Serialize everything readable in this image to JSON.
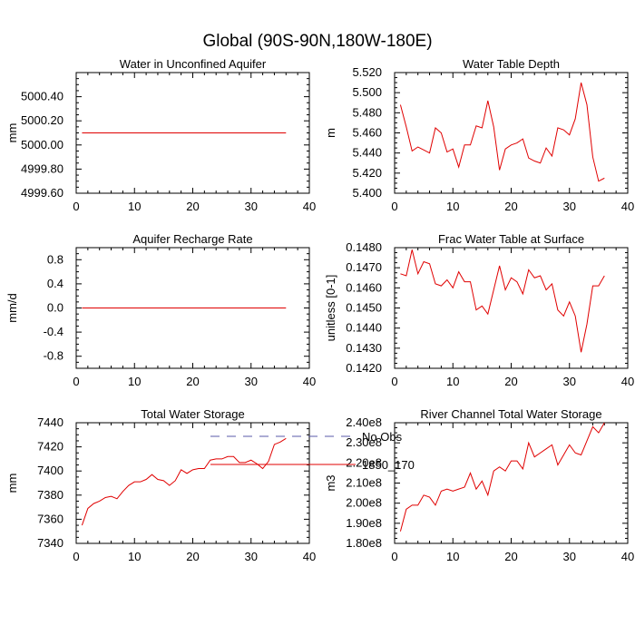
{
  "figure_title": "Global (90S-90N,180W-180E)",
  "legend": {
    "entries": [
      {
        "label": "No Obs",
        "color": "#5a5aa8",
        "style": "dashed"
      },
      {
        "label": "1850_170",
        "color": "#e00000",
        "style": "solid"
      }
    ]
  },
  "chart_data": [
    {
      "type": "line",
      "title": "Water in Unconfined Aquifer",
      "xlabel": "",
      "ylabel": "mm",
      "xlim": [
        0,
        40
      ],
      "ylim": [
        4999.6,
        5000.6
      ],
      "xticks": [
        0,
        10,
        20,
        30,
        40
      ],
      "xtick_labels": [
        "0",
        "10",
        "20",
        "30",
        "40"
      ],
      "yticks": [
        4999.6,
        4999.8,
        5000.0,
        5000.2,
        5000.4
      ],
      "ytick_labels": [
        "4999.60",
        "4999.80",
        "5000.00",
        "5000.20",
        "5000.40"
      ],
      "series": [
        {
          "color": "#e00000",
          "x": [
            1,
            36
          ],
          "values": [
            5000.1,
            5000.1
          ]
        }
      ]
    },
    {
      "type": "line",
      "title": "Water Table Depth",
      "xlabel": "",
      "ylabel": "m",
      "xlim": [
        0,
        40
      ],
      "ylim": [
        5.4,
        5.52
      ],
      "xticks": [
        0,
        10,
        20,
        30,
        40
      ],
      "xtick_labels": [
        "0",
        "10",
        "20",
        "30",
        "40"
      ],
      "yticks": [
        5.4,
        5.42,
        5.44,
        5.46,
        5.48,
        5.5,
        5.52
      ],
      "ytick_labels": [
        "5.400",
        "5.420",
        "5.440",
        "5.460",
        "5.480",
        "5.500",
        "5.520"
      ],
      "series": [
        {
          "color": "#e00000",
          "x": [
            1,
            2,
            3,
            4,
            5,
            6,
            7,
            8,
            9,
            10,
            11,
            12,
            13,
            14,
            15,
            16,
            17,
            18,
            19,
            20,
            21,
            22,
            23,
            24,
            25,
            26,
            27,
            28,
            29,
            30,
            31,
            32,
            33,
            34,
            35,
            36
          ],
          "values": [
            5.488,
            5.466,
            5.442,
            5.446,
            5.443,
            5.44,
            5.465,
            5.46,
            5.441,
            5.444,
            5.426,
            5.448,
            5.448,
            5.467,
            5.465,
            5.492,
            5.466,
            5.423,
            5.444,
            5.448,
            5.45,
            5.454,
            5.435,
            5.432,
            5.43,
            5.445,
            5.437,
            5.465,
            5.463,
            5.458,
            5.474,
            5.51,
            5.488,
            5.436,
            5.412,
            5.415
          ]
        }
      ]
    },
    {
      "type": "line",
      "title": "Aquifer Recharge Rate",
      "xlabel": "",
      "ylabel": "mm/d",
      "xlim": [
        0,
        40
      ],
      "ylim": [
        -1.0,
        1.0
      ],
      "xticks": [
        0,
        10,
        20,
        30,
        40
      ],
      "xtick_labels": [
        "0",
        "10",
        "20",
        "30",
        "40"
      ],
      "yticks": [
        -0.8,
        -0.4,
        0.0,
        0.4,
        0.8
      ],
      "ytick_labels": [
        "-0.8",
        "-0.4",
        "0.0",
        "0.4",
        "0.8"
      ],
      "series": [
        {
          "color": "#e00000",
          "x": [
            1,
            36
          ],
          "values": [
            0.0,
            0.0
          ]
        }
      ]
    },
    {
      "type": "line",
      "title": "Frac Water Table at Surface",
      "xlabel": "",
      "ylabel": "unitless [0-1]",
      "xlim": [
        0,
        40
      ],
      "ylim": [
        0.142,
        0.148
      ],
      "xticks": [
        0,
        10,
        20,
        30,
        40
      ],
      "xtick_labels": [
        "0",
        "10",
        "20",
        "30",
        "40"
      ],
      "yticks": [
        0.142,
        0.143,
        0.144,
        0.145,
        0.146,
        0.147,
        0.148
      ],
      "ytick_labels": [
        "0.1420",
        "0.1430",
        "0.1440",
        "0.1450",
        "0.1460",
        "0.1470",
        "0.1480"
      ],
      "series": [
        {
          "color": "#e00000",
          "x": [
            1,
            2,
            3,
            4,
            5,
            6,
            7,
            8,
            9,
            10,
            11,
            12,
            13,
            14,
            15,
            16,
            17,
            18,
            19,
            20,
            21,
            22,
            23,
            24,
            25,
            26,
            27,
            28,
            29,
            30,
            31,
            32,
            33,
            34,
            35,
            36
          ],
          "values": [
            0.1467,
            0.1466,
            0.1479,
            0.1467,
            0.1473,
            0.1472,
            0.1462,
            0.1461,
            0.1464,
            0.146,
            0.1468,
            0.1463,
            0.1463,
            0.1449,
            0.1451,
            0.1447,
            0.1459,
            0.1471,
            0.1459,
            0.1465,
            0.1463,
            0.1457,
            0.1469,
            0.1465,
            0.1466,
            0.1459,
            0.1462,
            0.1449,
            0.1446,
            0.1453,
            0.1446,
            0.1428,
            0.1442,
            0.1461,
            0.1461,
            0.1466
          ]
        }
      ]
    },
    {
      "type": "line",
      "title": "Total Water Storage",
      "xlabel": "",
      "ylabel": "mm",
      "xlim": [
        0,
        40
      ],
      "ylim": [
        7340,
        7440
      ],
      "xticks": [
        0,
        10,
        20,
        30,
        40
      ],
      "xtick_labels": [
        "0",
        "10",
        "20",
        "30",
        "40"
      ],
      "yticks": [
        7340,
        7360,
        7380,
        7400,
        7420,
        7440
      ],
      "ytick_labels": [
        "7340",
        "7360",
        "7380",
        "7400",
        "7420",
        "7440"
      ],
      "series": [
        {
          "color": "#e00000",
          "x": [
            1,
            2,
            3,
            4,
            5,
            6,
            7,
            8,
            9,
            10,
            11,
            12,
            13,
            14,
            15,
            16,
            17,
            18,
            19,
            20,
            21,
            22,
            23,
            24,
            25,
            26,
            27,
            28,
            29,
            30,
            31,
            32,
            33,
            34,
            35,
            36
          ],
          "values": [
            7355,
            7369,
            7373,
            7375,
            7378,
            7379,
            7377,
            7383,
            7388,
            7391,
            7391,
            7393,
            7397,
            7393,
            7392,
            7388,
            7392,
            7401,
            7398,
            7401,
            7402,
            7402,
            7409,
            7410,
            7410,
            7412,
            7412,
            7407,
            7407,
            7409,
            7406,
            7402,
            7408,
            7422,
            7424,
            7427
          ]
        }
      ]
    },
    {
      "type": "line",
      "title": "River Channel Total Water Storage",
      "xlabel": "",
      "ylabel": "m3",
      "xlim": [
        0,
        40
      ],
      "ylim": [
        180000000.0,
        240000000.0
      ],
      "xticks": [
        0,
        10,
        20,
        30,
        40
      ],
      "xtick_labels": [
        "0",
        "10",
        "20",
        "30",
        "40"
      ],
      "yticks": [
        180000000.0,
        190000000.0,
        200000000.0,
        210000000.0,
        220000000.0,
        230000000.0,
        240000000.0
      ],
      "ytick_labels": [
        "1.80e8",
        "1.90e8",
        "2.00e8",
        "2.10e8",
        "2.20e8",
        "2.30e8",
        "2.40e8"
      ],
      "series": [
        {
          "color": "#e00000",
          "x": [
            1,
            2,
            3,
            4,
            5,
            6,
            7,
            8,
            9,
            10,
            11,
            12,
            13,
            14,
            15,
            16,
            17,
            18,
            19,
            20,
            21,
            22,
            23,
            24,
            25,
            26,
            27,
            28,
            29,
            30,
            31,
            32,
            33,
            34,
            35,
            36
          ],
          "values": [
            186000000.0,
            197000000.0,
            199000000.0,
            199000000.0,
            204000000.0,
            203000000.0,
            199000000.0,
            206000000.0,
            207000000.0,
            206000000.0,
            207000000.0,
            208000000.0,
            215000000.0,
            207000000.0,
            211000000.0,
            204000000.0,
            216000000.0,
            218000000.0,
            216000000.0,
            221000000.0,
            221000000.0,
            217000000.0,
            230000000.0,
            223000000.0,
            225000000.0,
            227000000.0,
            229000000.0,
            219000000.0,
            224000000.0,
            229000000.0,
            225000000.0,
            224000000.0,
            231000000.0,
            238000000.0,
            235000000.0,
            240000000.0
          ]
        }
      ]
    }
  ]
}
